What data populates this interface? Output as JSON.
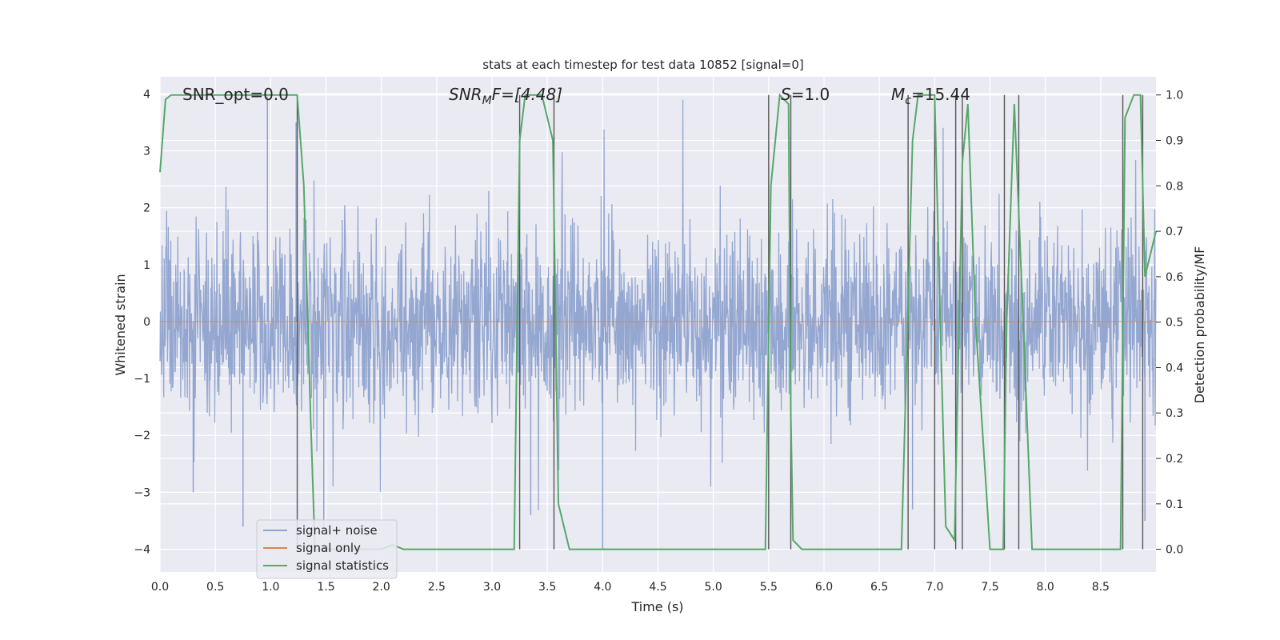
{
  "chart_data": {
    "type": "line",
    "title": "stats at each timestep for test data 10852 [signal=0]",
    "xlabel": "Time (s)",
    "ylabel_left": "Whitened strain",
    "ylabel_right": "Detection probability/MF",
    "xlim": [
      0.0,
      9.0
    ],
    "ylim_left": [
      -4.4,
      4.3
    ],
    "ylim_right": [
      -0.05,
      1.04
    ],
    "xticks": [
      0.0,
      0.5,
      1.0,
      1.5,
      2.0,
      2.5,
      3.0,
      3.5,
      4.0,
      4.5,
      5.0,
      5.5,
      6.0,
      6.5,
      7.0,
      7.5,
      8.0,
      8.5
    ],
    "xtick_labels": [
      "0.0",
      "0.5",
      "1.0",
      "1.5",
      "2.0",
      "2.5",
      "3.0",
      "3.5",
      "4.0",
      "4.5",
      "5.0",
      "5.5",
      "6.0",
      "6.5",
      "7.0",
      "7.5",
      "8.0",
      "8.5"
    ],
    "yticks_left": [
      4,
      3,
      2,
      1,
      0,
      -1,
      -2,
      -3,
      -4
    ],
    "ytick_labels_left": [
      "4",
      "3",
      "2",
      "1",
      "0",
      "−1",
      "−2",
      "−3",
      "−4"
    ],
    "yticks_right": [
      1.0,
      0.9,
      0.8,
      0.7,
      0.6,
      0.5,
      0.4,
      0.3,
      0.2,
      0.1,
      0.0
    ],
    "ytick_labels_right": [
      "1.0",
      "0.9",
      "0.8",
      "0.7",
      "0.6",
      "0.5",
      "0.4",
      "0.3",
      "0.2",
      "0.1",
      "0.0"
    ],
    "grid": true,
    "legend_position": "lower-left",
    "legend": [
      "signal+ noise",
      "signal only",
      "signal statistics"
    ],
    "annotations": {
      "snr_opt": "SNR_opt=0.0",
      "snr_mf_name": "SNR",
      "snr_mf_sub": "M",
      "snr_mf_rest": "F=[4.48]",
      "s_name": "S",
      "s_rest": "=1.0",
      "mc_name": "M",
      "mc_sub": "c",
      "mc_rest": "=15.44"
    },
    "series": [
      {
        "name": "signal+ noise",
        "axis": "left",
        "color": "#8fa3cf",
        "style": "dense noise trace, approximately within −4 to +4",
        "peaks": [
          {
            "x": 0.97,
            "y": 3.95
          },
          {
            "x": 1.23,
            "y": 3.5
          },
          {
            "x": 0.3,
            "y": -3.0
          },
          {
            "x": 0.75,
            "y": -3.6
          },
          {
            "x": 1.48,
            "y": -3.6
          },
          {
            "x": 3.35,
            "y": -3.4
          },
          {
            "x": 4.0,
            "y": -4.0
          },
          {
            "x": 6.8,
            "y": -3.3
          },
          {
            "x": 8.9,
            "y": -3.5
          }
        ]
      },
      {
        "name": "signal only",
        "axis": "left",
        "color": "#dd8452",
        "x": [
          0.0,
          9.0
        ],
        "y": [
          0.0,
          0.0
        ]
      },
      {
        "name": "signal statistics",
        "axis": "right",
        "color": "#55a868",
        "x": [
          0.0,
          0.05,
          0.1,
          1.24,
          1.3,
          1.36,
          1.4,
          1.45,
          1.5,
          1.55,
          1.6,
          1.8,
          2.0,
          2.1,
          2.2,
          2.6,
          2.7,
          3.2,
          3.25,
          3.3,
          3.45,
          3.55,
          3.6,
          3.7,
          5.47,
          5.52,
          5.6,
          5.68,
          5.7,
          5.72,
          5.8,
          6.7,
          6.8,
          6.85,
          7.0,
          7.05,
          7.1,
          7.18,
          7.25,
          7.3,
          7.37,
          7.5,
          7.62,
          7.65,
          7.72,
          7.8,
          7.88,
          8.68,
          8.72,
          8.8,
          8.86,
          8.9,
          9.0
        ],
        "y": [
          0.83,
          0.99,
          1.0,
          1.0,
          0.8,
          0.3,
          0.0,
          0.0,
          0.0,
          0.0,
          0.0,
          0.0,
          0.0,
          0.01,
          0.0,
          0.0,
          0.0,
          0.0,
          0.9,
          1.0,
          1.0,
          0.9,
          0.1,
          0.0,
          0.0,
          0.8,
          1.0,
          0.98,
          0.3,
          0.02,
          0.0,
          0.0,
          0.9,
          1.0,
          1.0,
          0.5,
          0.05,
          0.02,
          0.85,
          0.98,
          0.5,
          0.0,
          0.0,
          0.5,
          0.98,
          0.5,
          0.0,
          0.0,
          0.95,
          1.0,
          1.0,
          0.6,
          0.7
        ]
      }
    ],
    "vertical_markers": {
      "color": "#555555",
      "x": [
        1.24,
        3.25,
        3.56,
        5.5,
        5.7,
        6.76,
        7.0,
        7.19,
        7.25,
        7.63,
        7.76,
        8.7,
        8.88
      ]
    }
  }
}
